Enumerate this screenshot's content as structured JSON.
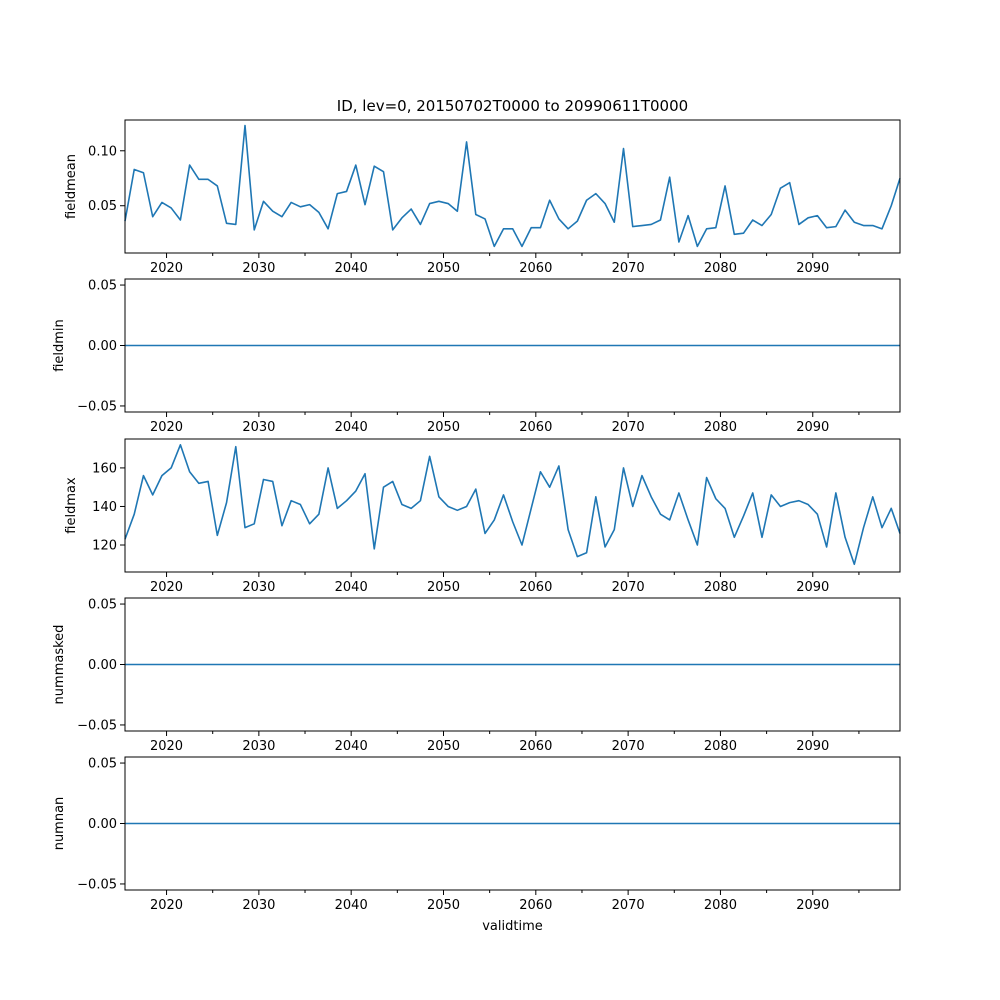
{
  "figure": {
    "title": "ID, lev=0, 20150702T0000 to 20990611T0000",
    "xlabel": "validtime"
  },
  "colors": {
    "line": "#1f77b4",
    "axis": "#000000",
    "background": "#ffffff"
  },
  "chart_data": [
    {
      "type": "line",
      "ylabel": "fieldmean",
      "xlim": [
        2015.5,
        2099.45
      ],
      "ylim": [
        0.007,
        0.128
      ],
      "x_ticks": [
        2020,
        2030,
        2040,
        2050,
        2060,
        2070,
        2080,
        2090
      ],
      "y_ticks": [
        0.05,
        0.1
      ],
      "y_tick_labels": [
        "0.05",
        "0.10"
      ],
      "x": [
        2015.5,
        2016.5,
        2017.5,
        2018.5,
        2019.5,
        2020.5,
        2021.5,
        2022.5,
        2023.5,
        2024.5,
        2025.5,
        2026.5,
        2027.5,
        2028.5,
        2029.5,
        2030.5,
        2031.5,
        2032.5,
        2033.5,
        2034.5,
        2035.5,
        2036.5,
        2037.5,
        2038.5,
        2039.5,
        2040.5,
        2041.5,
        2042.5,
        2043.5,
        2044.5,
        2045.5,
        2046.5,
        2047.5,
        2048.5,
        2049.5,
        2050.5,
        2051.5,
        2052.5,
        2053.5,
        2054.5,
        2055.5,
        2056.5,
        2057.5,
        2058.5,
        2059.5,
        2060.5,
        2061.5,
        2062.5,
        2063.5,
        2064.5,
        2065.5,
        2066.5,
        2067.5,
        2068.5,
        2069.5,
        2070.5,
        2071.5,
        2072.5,
        2073.5,
        2074.5,
        2075.5,
        2076.5,
        2077.5,
        2078.5,
        2079.5,
        2080.5,
        2081.5,
        2082.5,
        2083.5,
        2084.5,
        2085.5,
        2086.5,
        2087.5,
        2088.5,
        2089.5,
        2090.5,
        2091.5,
        2092.5,
        2093.5,
        2094.5,
        2095.5,
        2096.5,
        2097.5,
        2098.5,
        2099.45
      ],
      "values": [
        0.036,
        0.083,
        0.08,
        0.04,
        0.053,
        0.048,
        0.037,
        0.087,
        0.074,
        0.074,
        0.068,
        0.034,
        0.033,
        0.123,
        0.028,
        0.054,
        0.045,
        0.04,
        0.053,
        0.049,
        0.051,
        0.044,
        0.029,
        0.061,
        0.063,
        0.087,
        0.051,
        0.086,
        0.081,
        0.028,
        0.039,
        0.047,
        0.033,
        0.052,
        0.054,
        0.052,
        0.045,
        0.108,
        0.042,
        0.038,
        0.013,
        0.029,
        0.029,
        0.013,
        0.03,
        0.03,
        0.055,
        0.038,
        0.029,
        0.036,
        0.055,
        0.061,
        0.052,
        0.035,
        0.102,
        0.031,
        0.032,
        0.033,
        0.037,
        0.076,
        0.017,
        0.041,
        0.013,
        0.029,
        0.03,
        0.068,
        0.024,
        0.025,
        0.037,
        0.032,
        0.042,
        0.066,
        0.071,
        0.033,
        0.039,
        0.041,
        0.03,
        0.031,
        0.046,
        0.035,
        0.032,
        0.032,
        0.029,
        0.05,
        0.075
      ]
    },
    {
      "type": "line",
      "ylabel": "fieldmin",
      "xlim": [
        2015.5,
        2099.45
      ],
      "ylim": [
        -0.055,
        0.055
      ],
      "x_ticks": [
        2020,
        2030,
        2040,
        2050,
        2060,
        2070,
        2080,
        2090
      ],
      "y_ticks": [
        -0.05,
        0.0,
        0.05
      ],
      "y_tick_labels": [
        "−0.05",
        "0.00",
        "0.05"
      ],
      "x": [
        2015.5,
        2099.45
      ],
      "values": [
        0,
        0
      ]
    },
    {
      "type": "line",
      "ylabel": "fieldmax",
      "xlim": [
        2015.5,
        2099.45
      ],
      "ylim": [
        106,
        175
      ],
      "x_ticks": [
        2020,
        2030,
        2040,
        2050,
        2060,
        2070,
        2080,
        2090
      ],
      "y_ticks": [
        120,
        140,
        160
      ],
      "y_tick_labels": [
        "120",
        "140",
        "160"
      ],
      "x": [
        2015.5,
        2016.5,
        2017.5,
        2018.5,
        2019.5,
        2020.5,
        2021.5,
        2022.5,
        2023.5,
        2024.5,
        2025.5,
        2026.5,
        2027.5,
        2028.5,
        2029.5,
        2030.5,
        2031.5,
        2032.5,
        2033.5,
        2034.5,
        2035.5,
        2036.5,
        2037.5,
        2038.5,
        2039.5,
        2040.5,
        2041.5,
        2042.5,
        2043.5,
        2044.5,
        2045.5,
        2046.5,
        2047.5,
        2048.5,
        2049.5,
        2050.5,
        2051.5,
        2052.5,
        2053.5,
        2054.5,
        2055.5,
        2056.5,
        2057.5,
        2058.5,
        2059.5,
        2060.5,
        2061.5,
        2062.5,
        2063.5,
        2064.5,
        2065.5,
        2066.5,
        2067.5,
        2068.5,
        2069.5,
        2070.5,
        2071.5,
        2072.5,
        2073.5,
        2074.5,
        2075.5,
        2076.5,
        2077.5,
        2078.5,
        2079.5,
        2080.5,
        2081.5,
        2082.5,
        2083.5,
        2084.5,
        2085.5,
        2086.5,
        2087.5,
        2088.5,
        2089.5,
        2090.5,
        2091.5,
        2092.5,
        2093.5,
        2094.5,
        2095.5,
        2096.5,
        2097.5,
        2098.5,
        2099.45
      ],
      "values": [
        123,
        136,
        156,
        146,
        156,
        160,
        172,
        158,
        152,
        153,
        125,
        142,
        171,
        129,
        131,
        154,
        153,
        130,
        143,
        141,
        131,
        136,
        160,
        139,
        143,
        148,
        157,
        118,
        150,
        153,
        141,
        139,
        143,
        166,
        145,
        140,
        138,
        140,
        149,
        126,
        133,
        146,
        132,
        120,
        139,
        158,
        150,
        161,
        128,
        114,
        116,
        145,
        119,
        128,
        160,
        140,
        156,
        145,
        136,
        133,
        147,
        133,
        120,
        155,
        144,
        139,
        124,
        135,
        147,
        124,
        146,
        140,
        142,
        143,
        141,
        136,
        119,
        147,
        124,
        110,
        129,
        145,
        129,
        139,
        126
      ]
    },
    {
      "type": "line",
      "ylabel": "nummasked",
      "xlim": [
        2015.5,
        2099.45
      ],
      "ylim": [
        -0.055,
        0.055
      ],
      "x_ticks": [
        2020,
        2030,
        2040,
        2050,
        2060,
        2070,
        2080,
        2090
      ],
      "y_ticks": [
        -0.05,
        0.0,
        0.05
      ],
      "y_tick_labels": [
        "−0.05",
        "0.00",
        "0.05"
      ],
      "x": [
        2015.5,
        2099.45
      ],
      "values": [
        0,
        0
      ]
    },
    {
      "type": "line",
      "ylabel": "numnan",
      "xlim": [
        2015.5,
        2099.45
      ],
      "ylim": [
        -0.055,
        0.055
      ],
      "x_ticks": [
        2020,
        2030,
        2040,
        2050,
        2060,
        2070,
        2080,
        2090
      ],
      "y_ticks": [
        -0.05,
        0.0,
        0.05
      ],
      "y_tick_labels": [
        "−0.05",
        "0.00",
        "0.05"
      ],
      "x": [
        2015.5,
        2099.45
      ],
      "values": [
        0,
        0
      ]
    }
  ]
}
